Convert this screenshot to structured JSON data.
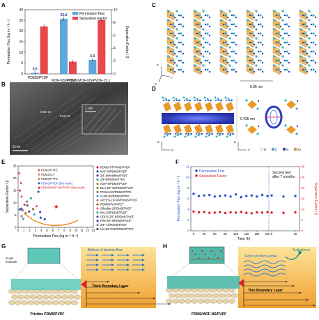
{
  "panel_letters": {
    "a": "A",
    "b": "B",
    "c": "C",
    "d": "D",
    "e": "E",
    "f": "F",
    "g": "G",
    "h": "H"
  },
  "chart_data": [
    {
      "panel": "A",
      "type": "bar",
      "categories": [
        "PDMS/PVDF",
        "MOF-NS/PVDF",
        "PDMS/MOF-NS/PVDF-15 s"
      ],
      "series": [
        {
          "name": "Permeation Flux",
          "axis": "left",
          "values": [
            0.5,
            25.8,
            6.6
          ],
          "color": "#5ea7d8"
        },
        {
          "name": "Separation Factor",
          "axis": "right",
          "values": [
            7.4,
            1.9,
            8.4
          ],
          "color": "#e8474b"
        }
      ],
      "value_labels": [
        "0.5",
        "25.8",
        "6.6"
      ],
      "ylabel": "Permeation Flux (kg m⁻² h⁻¹)",
      "y2label": "Separation Factor / β",
      "ylim": [
        0,
        30
      ],
      "y2lim": [
        0,
        10
      ],
      "yticks": [
        "0",
        "5",
        "10",
        "15",
        "20",
        "25",
        "30"
      ],
      "y2ticks": [
        "0",
        "2",
        "4",
        "6",
        "8",
        "10"
      ]
    },
    {
      "panel": "E",
      "type": "scatter",
      "xlabel": "Permeation Flux (kg m⁻² h⁻¹)",
      "ylabel": "Separation Factor / β",
      "xlim": [
        0,
        13
      ],
      "ylim": [
        0,
        25
      ],
      "xticks": [
        "0",
        "1",
        "2",
        "3",
        "4",
        "5",
        "6",
        "7",
        "8",
        "9",
        "10",
        "11",
        "12",
        "13"
      ],
      "yticks": [
        "0",
        "5",
        "10",
        "15",
        "20",
        "25"
      ],
      "points": [
        {
          "x": 0.2,
          "y": 22,
          "color": "#e8474b"
        },
        {
          "x": 0.5,
          "y": 18,
          "color": "#e36b6b"
        },
        {
          "x": 0.6,
          "y": 12.5,
          "color": "#e36b6b"
        },
        {
          "x": 0.3,
          "y": 15,
          "color": "#e8474b"
        },
        {
          "x": 1.1,
          "y": 9.2,
          "color": "#e8474b"
        },
        {
          "x": 1.6,
          "y": 8.9,
          "color": "#6b3fa0"
        },
        {
          "x": 2.2,
          "y": 11.8,
          "color": "#2bb0a0"
        },
        {
          "x": 3.5,
          "y": 14.5,
          "color": "#2a55c8"
        },
        {
          "x": 3.8,
          "y": 6.2,
          "color": "#6b3fa0"
        },
        {
          "x": 3.9,
          "y": 3.9,
          "color": "#2a55c8"
        },
        {
          "x": 1.3,
          "y": 5.8,
          "color": "#6a9a2a"
        },
        {
          "x": 0.8,
          "y": 6.9,
          "color": "#d08030"
        },
        {
          "x": 0.6,
          "y": 4.5,
          "color": "#d06b9a"
        },
        {
          "x": 2.6,
          "y": 7.4,
          "color": "#7a7a2a"
        },
        {
          "x": 4.6,
          "y": 3.3,
          "color": "#2a55c8"
        },
        {
          "x": 1.9,
          "y": 6.4,
          "color": "#6b3fa0"
        },
        {
          "x": 2.8,
          "y": 5.2,
          "color": "#3aa0d0"
        },
        {
          "x": 0.9,
          "y": 3.4,
          "color": "#2bb0a0"
        },
        {
          "x": 3.2,
          "y": 8.6,
          "color": "#e36b6b"
        },
        {
          "x": 1.5,
          "y": 10.5,
          "color": "#7a7a7a"
        },
        {
          "x": 0.2,
          "y": 7.2,
          "color": "#8a8a8a"
        },
        {
          "x": 6.6,
          "y": 8.4,
          "color": "#e8474b"
        }
      ],
      "star_points": [
        {
          "x": 0.5,
          "y": 7.4,
          "color": "#2a55c8"
        },
        {
          "x": 6.6,
          "y": 8.4,
          "color": "#d9252b"
        }
      ],
      "legend_left": [
        {
          "label": "PDMS/PTFE",
          "color": "#e8474b"
        },
        {
          "label": "PDMS/CA",
          "color": "#e36b6b"
        },
        {
          "label": "PDMS/PTFE",
          "color": "#e36b6b"
        },
        {
          "label": "PDMS/PVDF (this work)",
          "color": "#2a55c8"
        },
        {
          "label": "PDMS/MOF-NS/PVDF (this work)",
          "color": "#d9252b"
        }
      ],
      "legend_right": [
        {
          "label": "PDMS-PTFPMS/PVDF",
          "color": "#d9252b"
        },
        {
          "label": "MAF-6/PDMS/PVDF",
          "color": "#2a55c8"
        },
        {
          "label": "ZIF-8/HMMMs/PVDF",
          "color": "#6b3fa0"
        },
        {
          "label": "ZIF-8/PDMS/PTFE",
          "color": "#2bb0a0"
        },
        {
          "label": "AZIF-8/PDMS/PVDF",
          "color": "#d08030"
        },
        {
          "label": "DLA-ZIF-90/PDMS/PVDF",
          "color": "#6a9a2a"
        },
        {
          "label": "POSS-GO/PDMS/PTFE",
          "color": "#7a7a7a"
        },
        {
          "label": "S-ZIF-90/PDMS/PTFE",
          "color": "#3aa0d0"
        },
        {
          "label": "APTES-ZIF-90/PDMS/PVDF",
          "color": "#d06b9a"
        },
        {
          "label": "PDMS/PVDF/PET",
          "color": "#7a7a2a"
        },
        {
          "label": "Silicalite-1/PDMS/PVDF",
          "color": "#e36b6b"
        },
        {
          "label": "MIL-53/PDMS/PVDF",
          "color": "#2bb0a0"
        },
        {
          "label": "ODPS-ZIF-8/PDMS/PVDF",
          "color": "#6b3fa0"
        },
        {
          "label": "PIM-ZIF-8/PDMS/PVDF",
          "color": "#2a55c8"
        },
        {
          "label": "ZIF-71/PDMS/PVDF",
          "color": "#8a8a8a"
        },
        {
          "label": "Uio-66-TMS/PDMS/PTFE",
          "color": "#444444"
        }
      ]
    },
    {
      "panel": "F",
      "type": "scatter",
      "xlabel": "Time (h)",
      "ylabel": "Permeation Flux (kg m⁻² h⁻¹)",
      "y2label": "Separation Factor / β",
      "ylim": [
        0,
        12
      ],
      "y2lim": [
        0,
        30
      ],
      "xticks": [
        "0",
        "30",
        "60",
        "90",
        "120",
        "150",
        "180",
        "210",
        "0",
        "30"
      ],
      "yticks": [
        "0",
        "2",
        "4",
        "6",
        "8",
        "10",
        "12"
      ],
      "y2ticks": [
        "0",
        "5",
        "10",
        "15",
        "20",
        "25",
        "30"
      ],
      "annotation": "Second test after 7 months",
      "series": [
        {
          "name": "Permeation Flux",
          "axis": "left",
          "color": "#2a55c8",
          "x": [
            0,
            15,
            30,
            45,
            60,
            75,
            90,
            105,
            120,
            135,
            150,
            165,
            180,
            195,
            210
          ],
          "y": [
            6.9,
            6.5,
            6.6,
            6.7,
            6.4,
            6.5,
            6.6,
            6.4,
            6.8,
            6.3,
            6.5,
            6.6,
            6.4,
            6.7,
            6.5
          ],
          "x2": [
            0,
            15,
            30
          ],
          "y2": [
            6.6,
            6.4,
            6.5
          ]
        },
        {
          "name": "Separation Factor",
          "axis": "right",
          "color": "#d9252b",
          "x": [
            0,
            15,
            30,
            45,
            60,
            75,
            90,
            105,
            120,
            135,
            150,
            165,
            180,
            195,
            210
          ],
          "y": [
            9.0,
            8.6,
            8.8,
            8.4,
            8.5,
            8.7,
            8.3,
            8.6,
            8.5,
            8.8,
            8.4,
            8.2,
            8.6,
            8.5,
            8.7
          ],
          "x2": [
            0,
            15,
            30
          ],
          "y2": [
            8.5,
            8.4,
            8.6
          ]
        }
      ]
    }
  ],
  "panel_b": {
    "scale": "2 nm",
    "inset_scale": "1 nm",
    "d1": "0.85 nm",
    "d2": "0.50 nm"
  },
  "panel_c": {
    "scale": "0.96 nm",
    "axes": [
      "Z",
      "Y",
      "X"
    ]
  },
  "panel_d": {
    "spacing": "0.435 nm",
    "axes": [
      "Z",
      "Y",
      "X"
    ],
    "legend": [
      "H",
      "C",
      "N",
      "Zn"
    ],
    "legend_colors": [
      "#ffffff",
      "#3bb0c8",
      "#2a3ec0",
      "#e89a2a"
    ]
  },
  "panel_g": {
    "label_guest": "Guest molecule",
    "flow": "Bottom of laminar flow",
    "layer": "Thick Boundary Layer",
    "membrane": "Pristine PDMS/PVDF"
  },
  "panel_h": {
    "flow": "Form of micro-vortex",
    "turb": "Turbulence",
    "layer": "Thin Boundary Layer",
    "membrane": "PDMS/MOF-NS/PVDF"
  }
}
